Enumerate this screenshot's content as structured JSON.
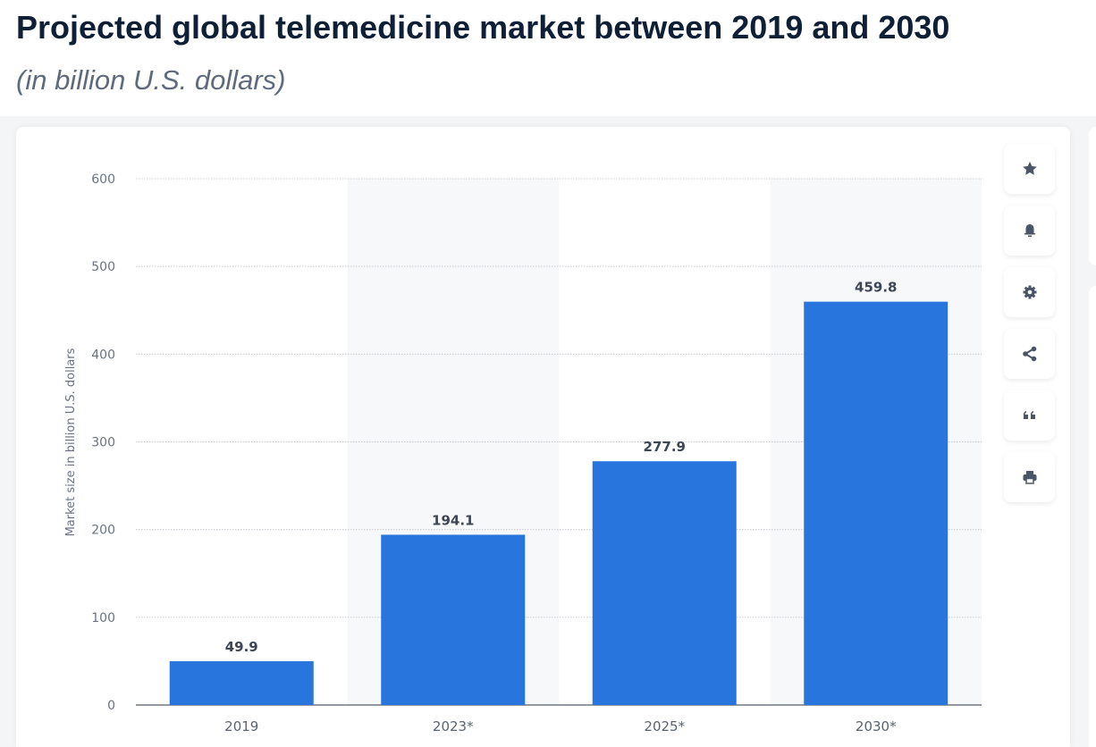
{
  "header": {
    "title": "Projected global telemedicine market between 2019 and 2030",
    "subtitle": "(in billion U.S. dollars)"
  },
  "toolbar": [
    {
      "icon": "star-icon",
      "name": "favorite-button"
    },
    {
      "icon": "bell-icon",
      "name": "notification-button"
    },
    {
      "icon": "gear-icon",
      "name": "settings-button"
    },
    {
      "icon": "share-icon",
      "name": "share-button"
    },
    {
      "icon": "quote-icon",
      "name": "cite-button"
    },
    {
      "icon": "print-icon",
      "name": "print-button"
    }
  ],
  "chart_data": {
    "type": "bar",
    "categories": [
      "2019",
      "2023*",
      "2025*",
      "2030*"
    ],
    "values": [
      49.9,
      194.1,
      277.9,
      459.8
    ],
    "value_labels": [
      "49.9",
      "194.1",
      "277.9",
      "459.8"
    ],
    "ylabel": "Market size in billion U.S. dollars",
    "xlabel": "",
    "ylim": [
      0,
      600
    ],
    "yticks": [
      "0",
      "100",
      "200",
      "300",
      "400",
      "500",
      "600"
    ],
    "grid": true,
    "bar_color": "#2876dd"
  }
}
